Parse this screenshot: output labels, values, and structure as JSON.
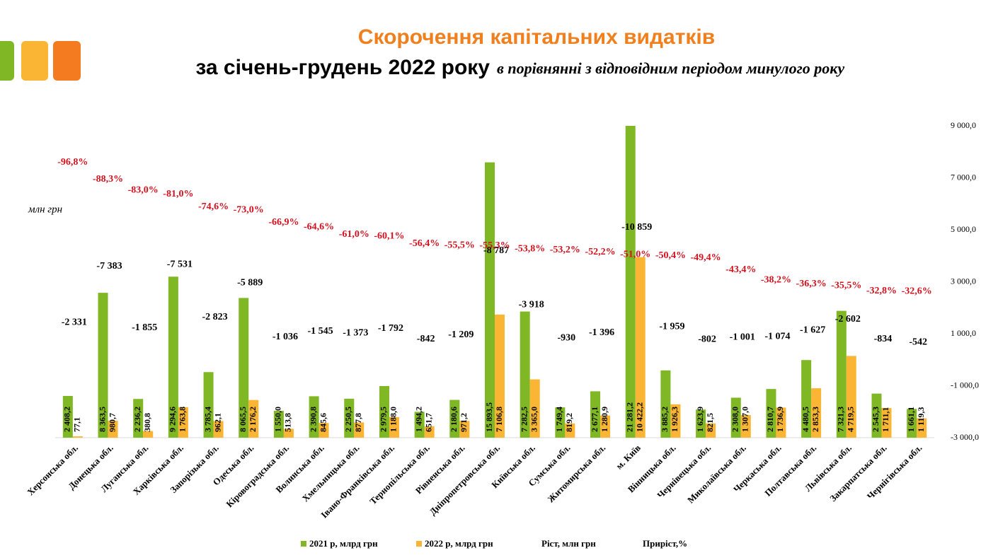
{
  "chart_data": {
    "type": "bar",
    "title": "Скорочення капітальних видатків",
    "subtitle": "за січень-грудень 2022 року",
    "subtitle_note": "в порівнянні з відповідним періодом минулого року",
    "ylabel": "млн грн",
    "categories": [
      "Херсонська обл.",
      "Донецька обл.",
      "Луганська обл.",
      "Харківська обл.",
      "Запорізька обл.",
      "Одеська обл.",
      "Кіровоградська обл.",
      "Волинська обл.",
      "Хмельницька обл.",
      "Івано-Франківська обл.",
      "Тернопільська обл.",
      "Рівненська обл.",
      "Дніпропетровська обл.",
      "Київська обл.",
      "Сумська обл.",
      "Житомирська обл.",
      "м. Київ",
      "Вінницька обл.",
      "Чернівецька обл.",
      "Миколаївська обл.",
      "Черкаська обл.",
      "Полтавська обл.",
      "Львівська обл.",
      "Закарпатська обл.",
      "Чернігівська обл."
    ],
    "ylim": [
      0,
      18000
    ],
    "y2lim": [
      -3000,
      9000
    ],
    "y2ticks": [
      {
        "value": 9000,
        "label": "9 000,0"
      },
      {
        "value": 7000,
        "label": "7 000,0"
      },
      {
        "value": 5000,
        "label": "5 000,0"
      },
      {
        "value": 3000,
        "label": "3 000,0"
      },
      {
        "value": 1000,
        "label": "1 000,0"
      },
      {
        "value": -1000,
        "label": "-1 000,0"
      },
      {
        "value": -3000,
        "label": "-3 000,0"
      }
    ],
    "y3lim": [
      8000,
      -20000
    ],
    "y4lim": [
      40,
      -115
    ],
    "series": [
      {
        "name": "2021 р, млрд грн",
        "type": "bar",
        "color": "#80b825",
        "values": [
          2408.2,
          8363.5,
          2236.2,
          9294.6,
          3785.4,
          8065.5,
          1550.0,
          2390.8,
          2250.5,
          2979.5,
          1494.2,
          2180.6,
          15893.5,
          7282.5,
          1749.4,
          2677.1,
          21281.2,
          3885.2,
          1623.9,
          2308.0,
          2810.7,
          4480.5,
          7321.3,
          2545.3,
          1661.1
        ],
        "value_labels": [
          "2 408,2",
          "8 363,5",
          "2 236,2",
          "9 294,6",
          "3 785,4",
          "8 065,5",
          "1 550,0",
          "2 390,8",
          "2 250,5",
          "2 979,5",
          "1 494,2",
          "2 180,6",
          "15 893,5",
          "7 282,5",
          "1 749,4",
          "2 677,1",
          "21 281,2",
          "3 885,2",
          "1 623,9",
          "2 308,0",
          "2 810,7",
          "4 480,5",
          "7 321,3",
          "2 545,3",
          "1 661,1"
        ]
      },
      {
        "name": "2022 р, млрд грн",
        "type": "bar",
        "color": "#fbb534",
        "values": [
          77.1,
          980.7,
          380.8,
          1763.8,
          962.1,
          2176.2,
          513.8,
          845.6,
          877.8,
          1188.0,
          651.7,
          971.2,
          7106.8,
          3365.0,
          819.2,
          1280.9,
          10422.2,
          1926.3,
          821.5,
          1307.0,
          1736.9,
          2853.3,
          4719.5,
          1711.1,
          1119.3
        ],
        "value_labels": [
          "77,1",
          "980,7",
          "380,8",
          "1 763,8",
          "962,1",
          "2 176,2",
          "513,8",
          "845,6",
          "877,8",
          "1 188,0",
          "651,7",
          "971,2",
          "7 106,8",
          "3 365,0",
          "819,2",
          "1 280,9",
          "10 422,2",
          "1 926,3",
          "821,5",
          "1 307,0",
          "1 736,9",
          "2 853,3",
          "4 719,5",
          "1 711,1",
          "1 119,3"
        ]
      },
      {
        "name": "Ріст, млн грн",
        "type": "text",
        "axis": "y3",
        "color": "#000000",
        "values": [
          -2331,
          -7383,
          -1855,
          -7531,
          -2823,
          -5889,
          -1036,
          -1545,
          -1373,
          -1792,
          -842,
          -1209,
          -8787,
          -3918,
          -930,
          -1396,
          -10859,
          -1959,
          -802,
          -1001,
          -1074,
          -1627,
          -2602,
          -834,
          -542
        ],
        "value_labels": [
          "-2 331",
          "-7 383",
          "-1 855",
          "-7 531",
          "-2 823",
          "-5 889",
          "-1 036",
          "-1 545",
          "-1 373",
          "-1 792",
          "-842",
          "-1 209",
          "-8 787",
          "-3 918",
          "-930",
          "-1 396",
          "-10 859",
          "-1 959",
          "-802",
          "-1 001",
          "-1 074",
          "-1 627",
          "-2 602",
          "-834",
          "-542"
        ]
      },
      {
        "name": "Приріст,%",
        "type": "text",
        "axis": "y4",
        "color": "#d4111e",
        "values": [
          -96.8,
          -88.3,
          -83.0,
          -81.0,
          -74.6,
          -73.0,
          -66.9,
          -64.6,
          -61.0,
          -60.1,
          -56.4,
          -55.5,
          -55.3,
          -53.8,
          -53.2,
          -52.2,
          -51.0,
          -50.4,
          -49.4,
          -43.4,
          -38.2,
          -36.3,
          -35.5,
          -32.8,
          -32.6
        ],
        "value_labels": [
          "-96,8%",
          "-88,3%",
          "-83,0%",
          "-81,0%",
          "-74,6%",
          "-73,0%",
          "-66,9%",
          "-64,6%",
          "-61,0%",
          "-60,1%",
          "-56,4%",
          "-55,5%",
          "-55,3%",
          "-53,8%",
          "-53,2%",
          "-52,2%",
          "-51,0%",
          "-50,4%",
          "-49,4%",
          "-43,4%",
          "-38,2%",
          "-36,3%",
          "-35,5%",
          "-32,8%",
          "-32,6%"
        ]
      }
    ]
  }
}
